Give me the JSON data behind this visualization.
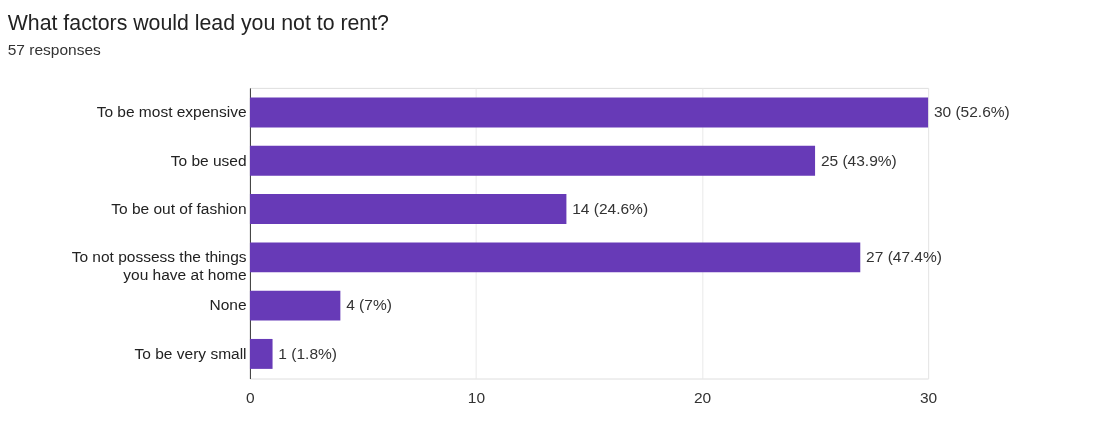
{
  "chart_data": {
    "type": "bar",
    "orientation": "horizontal",
    "title": "What factors would lead you not to rent?",
    "subtitle": "57 responses",
    "categories": [
      "To be most expensive",
      "To be used",
      "To be out of fashion",
      "To not possess the things you have at home",
      "None",
      "To be very small"
    ],
    "values": [
      30,
      25,
      14,
      27,
      4,
      1
    ],
    "color": "#673ab7",
    "value_labels": [
      "30 (52.6%)",
      "25 (43.9%)",
      "14 (24.6%)",
      "27 (47.4%)",
      "4 (7%)",
      "1 (1.8%)"
    ],
    "xlim": [
      0,
      30
    ],
    "xticks": [
      0,
      10,
      20,
      30
    ],
    "grid": "x"
  }
}
